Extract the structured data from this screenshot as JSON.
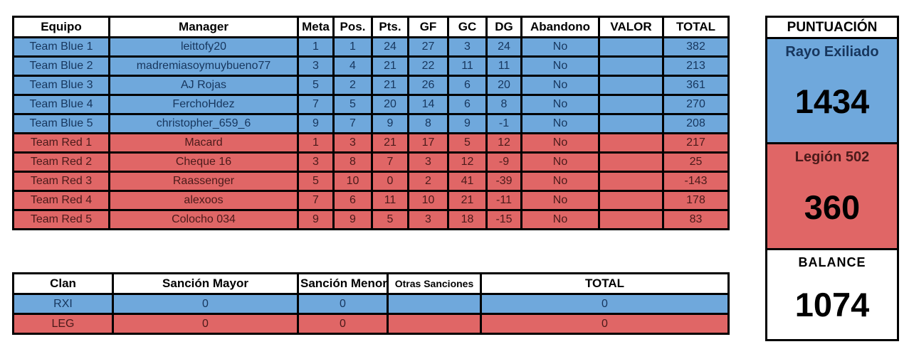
{
  "colors": {
    "team_blue": "#6FA8DC",
    "team_red": "#E06666"
  },
  "standings": {
    "headers": [
      "Equipo",
      "Manager",
      "Meta",
      "Pos.",
      "Pts.",
      "GF",
      "GC",
      "DG",
      "Abandono",
      "VALOR",
      "TOTAL"
    ],
    "rows": [
      {
        "side": "blue",
        "team": "Team Blue 1",
        "manager": "leittofy20",
        "meta": "1",
        "pos": "1",
        "pts": "24",
        "gf": "27",
        "gc": "3",
        "dg": "24",
        "abandono": "No",
        "valor": "",
        "total": "382"
      },
      {
        "side": "blue",
        "team": "Team Blue 2",
        "manager": "madremiasoymuybueno77",
        "meta": "3",
        "pos": "4",
        "pts": "21",
        "gf": "22",
        "gc": "11",
        "dg": "11",
        "abandono": "No",
        "valor": "",
        "total": "213"
      },
      {
        "side": "blue",
        "team": "Team Blue 3",
        "manager": "AJ Rojas",
        "meta": "5",
        "pos": "2",
        "pts": "21",
        "gf": "26",
        "gc": "6",
        "dg": "20",
        "abandono": "No",
        "valor": "",
        "total": "361"
      },
      {
        "side": "blue",
        "team": "Team Blue 4",
        "manager": "FerchoHdez",
        "meta": "7",
        "pos": "5",
        "pts": "20",
        "gf": "14",
        "gc": "6",
        "dg": "8",
        "abandono": "No",
        "valor": "",
        "total": "270"
      },
      {
        "side": "blue",
        "team": "Team Blue 5",
        "manager": "christopher_659_6",
        "meta": "9",
        "pos": "7",
        "pts": "9",
        "gf": "8",
        "gc": "9",
        "dg": "-1",
        "abandono": "No",
        "valor": "",
        "total": "208"
      },
      {
        "side": "red",
        "team": "Team Red 1",
        "manager": "Macard",
        "meta": "1",
        "pos": "3",
        "pts": "21",
        "gf": "17",
        "gc": "5",
        "dg": "12",
        "abandono": "No",
        "valor": "",
        "total": "217"
      },
      {
        "side": "red",
        "team": "Team Red 2",
        "manager": "Cheque 16",
        "meta": "3",
        "pos": "8",
        "pts": "7",
        "gf": "3",
        "gc": "12",
        "dg": "-9",
        "abandono": "No",
        "valor": "",
        "total": "25"
      },
      {
        "side": "red",
        "team": "Team Red 3",
        "manager": "Raassenger",
        "meta": "5",
        "pos": "10",
        "pts": "0",
        "gf": "2",
        "gc": "41",
        "dg": "-39",
        "abandono": "No",
        "valor": "",
        "total": "-143"
      },
      {
        "side": "red",
        "team": "Team Red 4",
        "manager": "alexoos",
        "meta": "7",
        "pos": "6",
        "pts": "11",
        "gf": "10",
        "gc": "21",
        "dg": "-11",
        "abandono": "No",
        "valor": "",
        "total": "178"
      },
      {
        "side": "red",
        "team": "Team Red 5",
        "manager": "Colocho 034",
        "meta": "9",
        "pos": "9",
        "pts": "5",
        "gf": "3",
        "gc": "18",
        "dg": "-15",
        "abandono": "No",
        "valor": "",
        "total": "83"
      }
    ]
  },
  "sanctions": {
    "headers": [
      "Clan",
      "Sanción Mayor",
      "Sanción Menor",
      "Otras Sanciones",
      "TOTAL"
    ],
    "rows": [
      {
        "side": "blue",
        "clan": "RXI",
        "mayor": "0",
        "menor": "0",
        "otras": "",
        "total": "0"
      },
      {
        "side": "red",
        "clan": "LEG",
        "mayor": "0",
        "menor": "0",
        "otras": "",
        "total": "0"
      }
    ]
  },
  "scoreboard": {
    "title": "PUNTUACIÓN",
    "blue_team": {
      "name": "Rayo Exiliado",
      "score": "1434"
    },
    "red_team": {
      "name": "Legión 502",
      "score": "360"
    },
    "balance_label": "BALANCE",
    "balance_value": "1074"
  }
}
